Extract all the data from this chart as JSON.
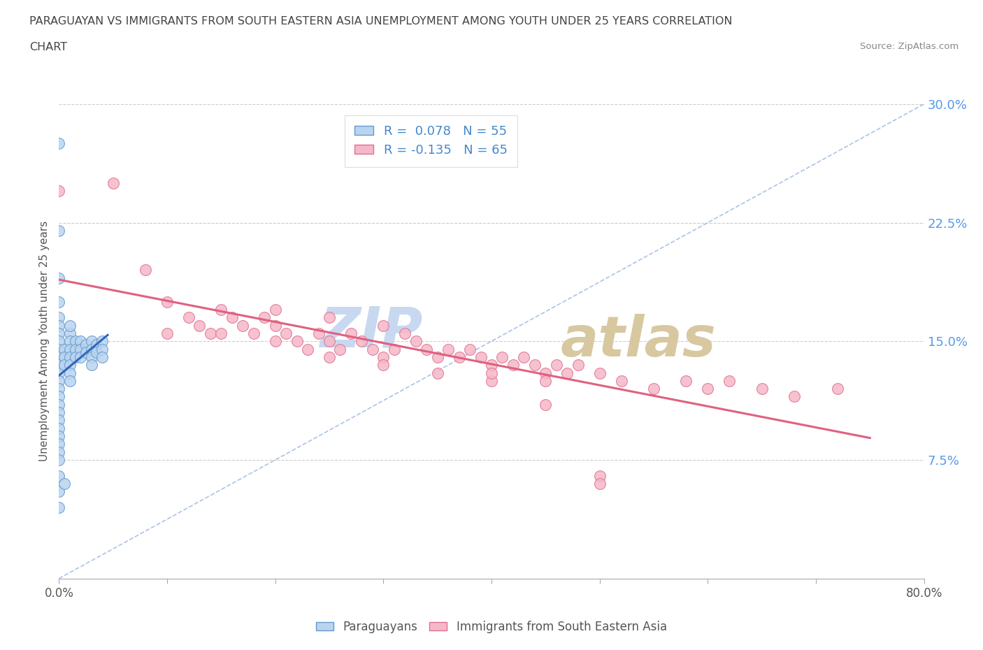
{
  "title_line1": "PARAGUAYAN VS IMMIGRANTS FROM SOUTH EASTERN ASIA UNEMPLOYMENT AMONG YOUTH UNDER 25 YEARS CORRELATION",
  "title_line2": "CHART",
  "source": "Source: ZipAtlas.com",
  "ylabel": "Unemployment Among Youth under 25 years",
  "xlim": [
    0,
    0.8
  ],
  "ylim": [
    0,
    0.3
  ],
  "yticks_right": [
    0.075,
    0.15,
    0.225,
    0.3
  ],
  "ytick_labels_right": [
    "7.5%",
    "15.0%",
    "22.5%",
    "30.0%"
  ],
  "R_paraguayan": 0.078,
  "N_paraguayan": 55,
  "R_sea": -0.135,
  "N_sea": 65,
  "color_paraguayan_face": "#b8d4f0",
  "color_paraguayan_edge": "#6699cc",
  "color_sea_face": "#f5b8c8",
  "color_sea_edge": "#e07090",
  "color_trend_paraguayan": "#3366bb",
  "color_trend_sea": "#e06080",
  "color_refline": "#88aadd",
  "paraguayan_x": [
    0.0,
    0.0,
    0.0,
    0.0,
    0.0,
    0.0,
    0.0,
    0.0,
    0.0,
    0.0,
    0.0,
    0.0,
    0.0,
    0.0,
    0.0,
    0.0,
    0.0,
    0.0,
    0.0,
    0.0,
    0.0,
    0.0,
    0.0,
    0.005,
    0.005,
    0.005,
    0.01,
    0.01,
    0.01,
    0.01,
    0.01,
    0.01,
    0.01,
    0.015,
    0.015,
    0.015,
    0.02,
    0.02,
    0.02,
    0.025,
    0.025,
    0.03,
    0.03,
    0.03,
    0.03,
    0.035,
    0.035,
    0.04,
    0.04,
    0.04,
    0.0,
    0.0,
    0.0,
    0.005,
    0.01
  ],
  "paraguayan_y": [
    0.275,
    0.22,
    0.19,
    0.175,
    0.165,
    0.16,
    0.155,
    0.15,
    0.145,
    0.14,
    0.135,
    0.13,
    0.125,
    0.12,
    0.115,
    0.11,
    0.105,
    0.1,
    0.095,
    0.09,
    0.085,
    0.08,
    0.075,
    0.145,
    0.14,
    0.135,
    0.155,
    0.15,
    0.145,
    0.14,
    0.135,
    0.13,
    0.125,
    0.15,
    0.145,
    0.14,
    0.15,
    0.145,
    0.14,
    0.148,
    0.143,
    0.15,
    0.145,
    0.14,
    0.135,
    0.148,
    0.143,
    0.15,
    0.145,
    0.14,
    0.065,
    0.055,
    0.045,
    0.06,
    0.16
  ],
  "sea_x": [
    0.0,
    0.05,
    0.08,
    0.1,
    0.12,
    0.13,
    0.14,
    0.15,
    0.16,
    0.17,
    0.18,
    0.19,
    0.2,
    0.21,
    0.22,
    0.23,
    0.24,
    0.25,
    0.26,
    0.27,
    0.28,
    0.29,
    0.3,
    0.31,
    0.32,
    0.33,
    0.34,
    0.35,
    0.36,
    0.37,
    0.38,
    0.39,
    0.4,
    0.41,
    0.42,
    0.43,
    0.44,
    0.45,
    0.46,
    0.47,
    0.48,
    0.5,
    0.52,
    0.55,
    0.58,
    0.6,
    0.62,
    0.65,
    0.68,
    0.72,
    0.1,
    0.15,
    0.2,
    0.25,
    0.3,
    0.35,
    0.4,
    0.45,
    0.5,
    0.2,
    0.25,
    0.3,
    0.45,
    0.5,
    0.4
  ],
  "sea_y": [
    0.245,
    0.25,
    0.195,
    0.175,
    0.165,
    0.16,
    0.155,
    0.17,
    0.165,
    0.16,
    0.155,
    0.165,
    0.16,
    0.155,
    0.15,
    0.145,
    0.155,
    0.15,
    0.145,
    0.155,
    0.15,
    0.145,
    0.14,
    0.145,
    0.155,
    0.15,
    0.145,
    0.14,
    0.145,
    0.14,
    0.145,
    0.14,
    0.135,
    0.14,
    0.135,
    0.14,
    0.135,
    0.13,
    0.135,
    0.13,
    0.135,
    0.13,
    0.125,
    0.12,
    0.125,
    0.12,
    0.125,
    0.12,
    0.115,
    0.12,
    0.155,
    0.155,
    0.15,
    0.14,
    0.135,
    0.13,
    0.125,
    0.11,
    0.065,
    0.17,
    0.165,
    0.16,
    0.125,
    0.06,
    0.13
  ]
}
